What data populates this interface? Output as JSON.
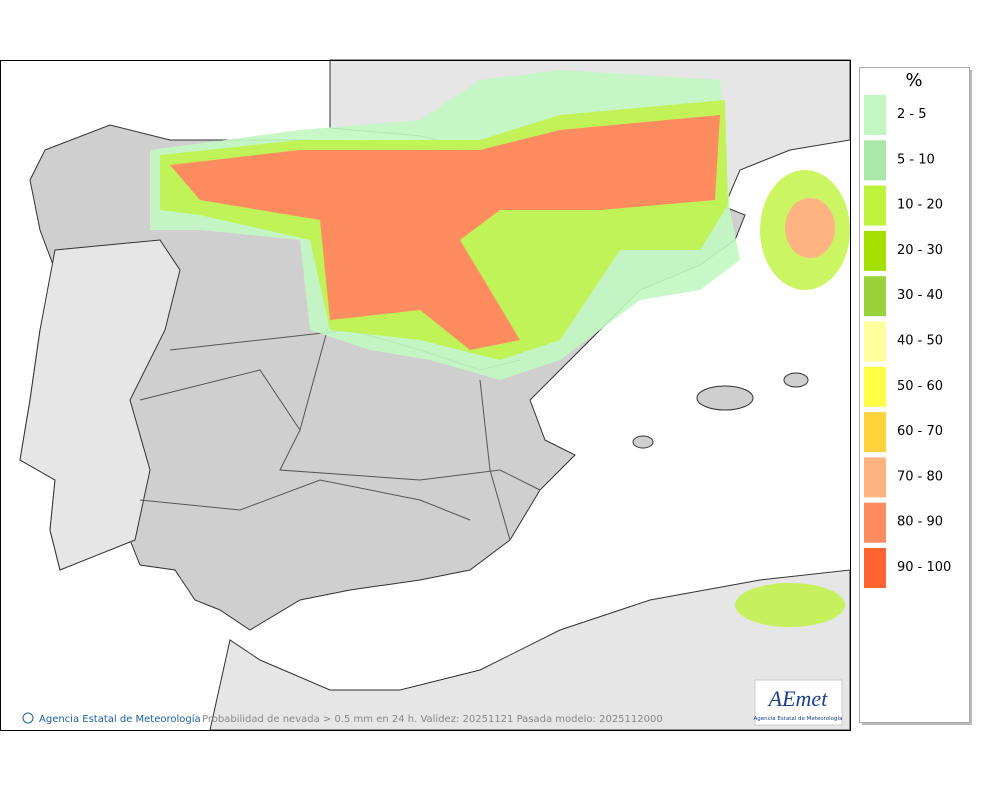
{
  "legend": {
    "title": "%",
    "items": [
      {
        "label": "2 - 5",
        "color": "#c2f7c2"
      },
      {
        "label": "5 - 10",
        "color": "#a9e8a9"
      },
      {
        "label": "10 - 20",
        "color": "#bff23c"
      },
      {
        "label": "20 - 30",
        "color": "#a3e000"
      },
      {
        "label": "30 - 40",
        "color": "#9ad23c"
      },
      {
        "label": "40 - 50",
        "color": "#ffff9c"
      },
      {
        "label": "50 - 60",
        "color": "#ffff45"
      },
      {
        "label": "60 - 70",
        "color": "#ffd23c"
      },
      {
        "label": "70 - 80",
        "color": "#ffb482"
      },
      {
        "label": "80 - 90",
        "color": "#ff8c5f"
      },
      {
        "label": "90 - 100",
        "color": "#ff6432"
      }
    ]
  },
  "footer": {
    "credit": "Agencia Estatal de Meteorología",
    "caption": "Probabilidad de nevada > 0.5 mm en 24 h. Validez: 20251121 Pasada modelo: 2025112000"
  },
  "logo": {
    "name": "AEmet",
    "subtitle": "Agencia Estatal de Meteorología"
  }
}
